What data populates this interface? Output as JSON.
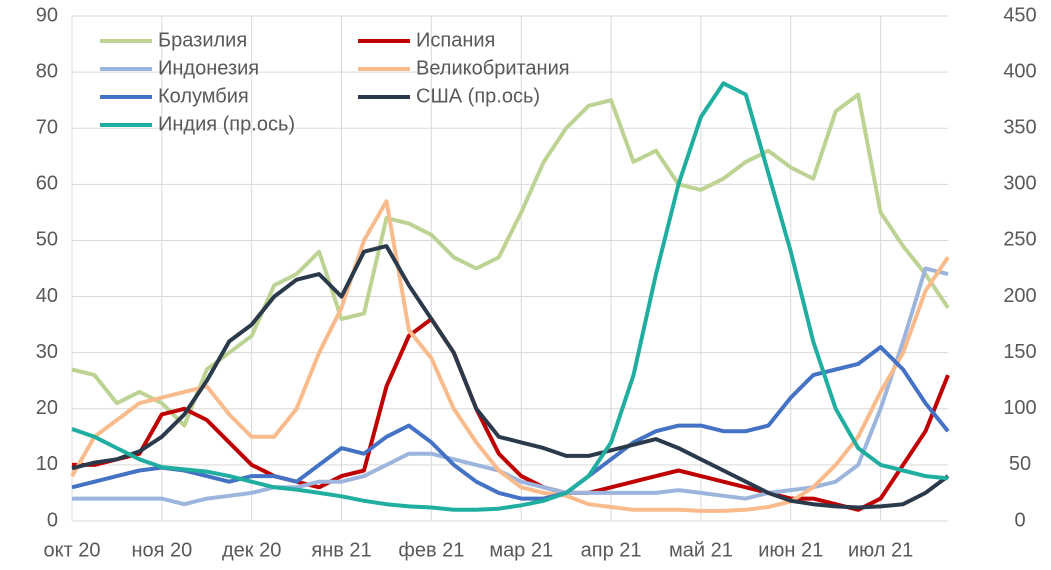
{
  "chart_data": {
    "type": "line",
    "categories": [
      "окт 20",
      null,
      null,
      null,
      "ноя 20",
      null,
      null,
      null,
      "дек 20",
      null,
      null,
      null,
      "янв 21",
      null,
      null,
      null,
      "фев 21",
      null,
      null,
      null,
      "мар 21",
      null,
      null,
      null,
      "апр 21",
      null,
      null,
      null,
      "май 21",
      null,
      null,
      null,
      "июн 21",
      null,
      null,
      null,
      "июл 21",
      null,
      null,
      null
    ],
    "series": [
      {
        "name": "Бразилия",
        "color": "#bcd393",
        "values": [
          27,
          26,
          21,
          23,
          21,
          17,
          27,
          30,
          33,
          42,
          44,
          48,
          36,
          37,
          54,
          53,
          51,
          47,
          45,
          47,
          55,
          64,
          70,
          74,
          75,
          64,
          66,
          60,
          59,
          61,
          64,
          66,
          63,
          61,
          73,
          76,
          55,
          49,
          44,
          38
        ]
      },
      {
        "name": "Испания",
        "color": "#c00000",
        "values": [
          10,
          10,
          11,
          12,
          19,
          20,
          18,
          14,
          10,
          8,
          7,
          6,
          8,
          9,
          24,
          33,
          36,
          30,
          20,
          12,
          8,
          6,
          5,
          5,
          6,
          7,
          8,
          9,
          8,
          7,
          6,
          5,
          4,
          4,
          3,
          2,
          4,
          10,
          16,
          26
        ]
      },
      {
        "name": "Индонезия",
        "color": "#9db5dd",
        "values": [
          4,
          4,
          4,
          4,
          4,
          3,
          4,
          4.5,
          5,
          6,
          6,
          7,
          7,
          8,
          10,
          12,
          12,
          11,
          10,
          9,
          7,
          6,
          5,
          5,
          5,
          5,
          5,
          5.5,
          5,
          4.5,
          4,
          5,
          5.5,
          6,
          7,
          10,
          20,
          32,
          45,
          44
        ]
      },
      {
        "name": "Великобритания",
        "color": "#f9bb8c",
        "values": [
          8,
          15,
          18,
          21,
          22,
          23,
          24,
          19,
          15,
          15,
          20,
          30,
          38,
          50,
          57,
          34,
          29,
          20,
          14,
          9,
          6,
          5,
          4.5,
          3,
          2.5,
          2,
          2,
          2,
          1.8,
          1.8,
          2,
          2.5,
          3.5,
          6,
          10,
          15,
          23,
          30,
          41,
          47
        ]
      },
      {
        "name": "Колумбия",
        "color": "#4472c4",
        "values": [
          6,
          7,
          8,
          9,
          9.5,
          9,
          8,
          7,
          8,
          8,
          7,
          10,
          13,
          12,
          15,
          17,
          14,
          10,
          7,
          5,
          4,
          4,
          5,
          8,
          11,
          14,
          16,
          17,
          17,
          16,
          16,
          17,
          22,
          26,
          27,
          28,
          31,
          27,
          21,
          16
        ]
      },
      {
        "name": "США (пр.ось)",
        "color": "#2b3a4a",
        "axis": "y2",
        "values": [
          47,
          52,
          55,
          62,
          75,
          95,
          125,
          160,
          175,
          200,
          215,
          220,
          200,
          240,
          245,
          210,
          180,
          150,
          100,
          75,
          70,
          65,
          58,
          58,
          63,
          68,
          73,
          65,
          55,
          45,
          35,
          25,
          18,
          15,
          13,
          12,
          13,
          15,
          25,
          40
        ]
      },
      {
        "name": "Индия (пр.ось)",
        "color": "#1faea0",
        "axis": "y2",
        "values": [
          82,
          75,
          65,
          55,
          48,
          46,
          44,
          40,
          35,
          30,
          28,
          25,
          22,
          18,
          15,
          13,
          12,
          10,
          10,
          11,
          14,
          18,
          25,
          40,
          70,
          130,
          220,
          300,
          360,
          390,
          380,
          310,
          240,
          160,
          100,
          65,
          50,
          45,
          40,
          38
        ]
      }
    ],
    "ylim": [
      0,
      90
    ],
    "yticks": [
      0,
      10,
      20,
      30,
      40,
      50,
      60,
      70,
      80,
      90
    ],
    "y2lim": [
      0,
      450
    ],
    "y2ticks": [
      0,
      50,
      100,
      150,
      200,
      250,
      300,
      350,
      400,
      450
    ],
    "grid": true,
    "legend": "top-left"
  }
}
